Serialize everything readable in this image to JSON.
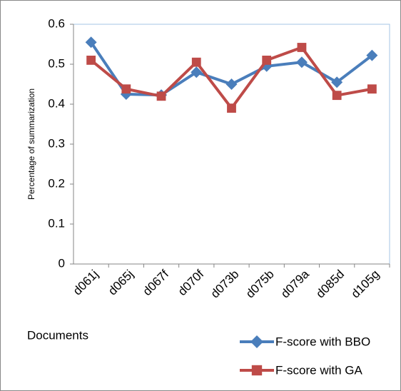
{
  "chart_data": {
    "type": "line",
    "y_label": "Percentage of summarization",
    "x_label": "Documents",
    "categories": [
      "d061j",
      "d065j",
      "d067f",
      "d070f",
      "d073b",
      "d075b",
      "d079a",
      "d085d",
      "d105g"
    ],
    "series": [
      {
        "name": "F-score with BBO",
        "color": "#4a7ebb",
        "marker": "diamond",
        "values": [
          0.555,
          0.425,
          0.423,
          0.48,
          0.45,
          0.495,
          0.505,
          0.455,
          0.522
        ]
      },
      {
        "name": "F-score with GA",
        "color": "#be4b48",
        "marker": "square",
        "values": [
          0.51,
          0.438,
          0.42,
          0.505,
          0.39,
          0.51,
          0.542,
          0.422,
          0.438
        ]
      }
    ],
    "ylim": [
      0,
      0.6
    ],
    "yticks": [
      0,
      0.1,
      0.2,
      0.3,
      0.4,
      0.5,
      0.6
    ],
    "grid": false,
    "legend": "bottom-right"
  }
}
